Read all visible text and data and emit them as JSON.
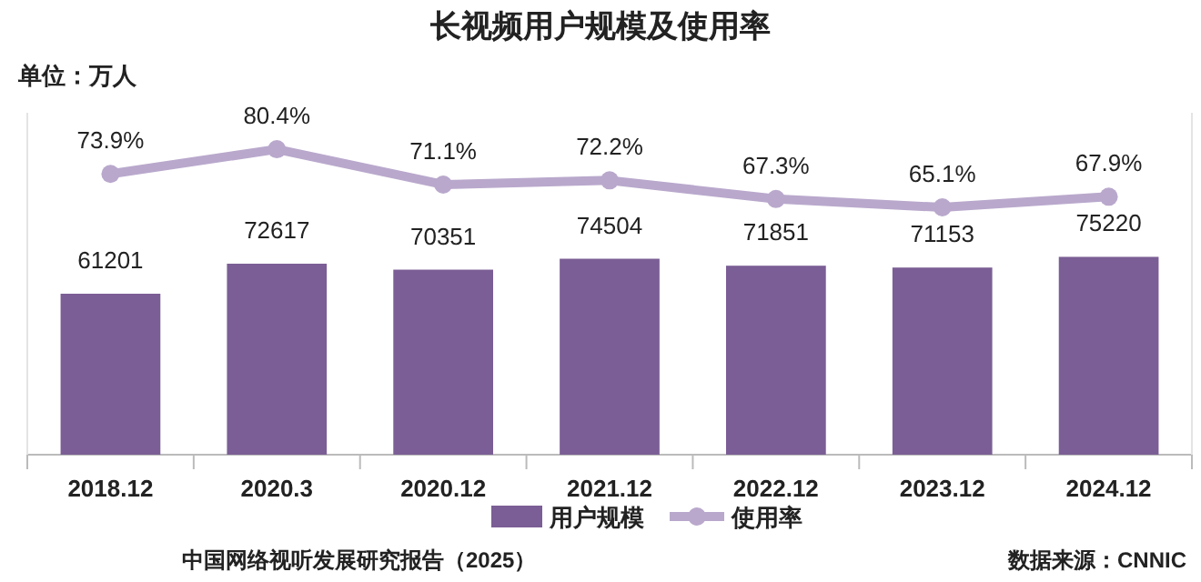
{
  "chart_data": {
    "type": "bar",
    "title": "长视频用户规模及使用率",
    "subtitle": "单位：万人",
    "categories": [
      "2018.12",
      "2020.3",
      "2020.12",
      "2021.12",
      "2022.12",
      "2023.12",
      "2024.12"
    ],
    "relative": false,
    "ylim": [
      0,
      130000
    ],
    "y2lim": [
      0,
      90
    ],
    "data_labels": true,
    "legend": "bottom",
    "marker": "circle",
    "series": [
      {
        "name": "用户规模",
        "color": "#7b5e95",
        "values": [
          61201,
          72617,
          70351,
          74504,
          71851,
          71153,
          75220
        ]
      },
      {
        "name": "使用率",
        "type": "line",
        "axis": "y2",
        "color": "#b9a8cc",
        "values": [
          73.9,
          80.4,
          71.1,
          72.2,
          67.3,
          65.1,
          67.9
        ],
        "value_labels": [
          "73.9%",
          "80.4%",
          "71.1%",
          "72.2%",
          "67.3%",
          "65.1%",
          "67.9%"
        ]
      }
    ],
    "annotations": [
      "中国网络视听发展研究报告（2025）",
      "数据来源：CNNIC"
    ]
  }
}
